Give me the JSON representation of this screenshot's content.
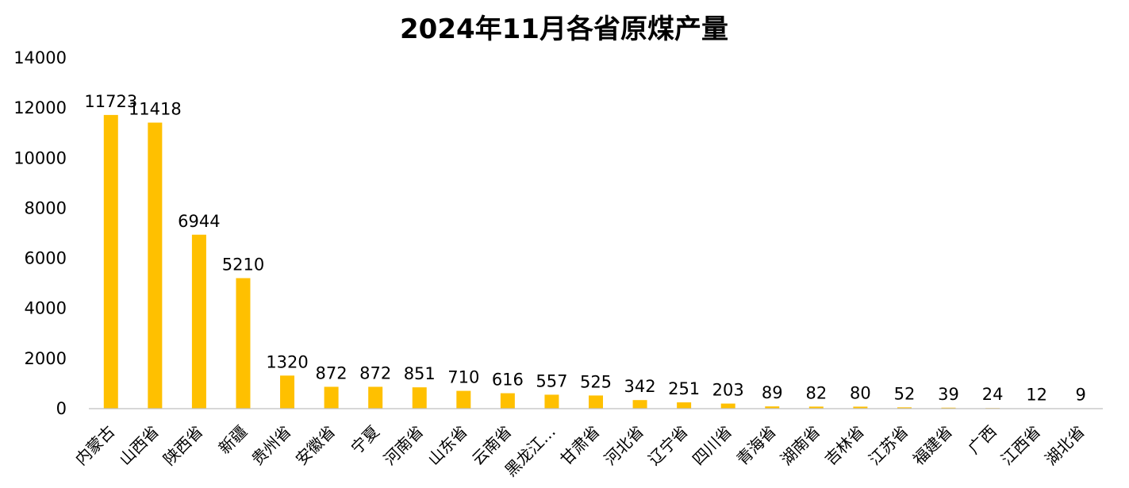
{
  "chart_data": {
    "type": "bar",
    "title": "2024年11月各省原煤产量",
    "xlabel": "",
    "ylabel": "",
    "ylim": [
      0,
      14000
    ],
    "yticks": [
      0,
      2000,
      4000,
      6000,
      8000,
      10000,
      12000,
      14000
    ],
    "grid": false,
    "legend": "none",
    "bar_color": "#FFC000",
    "categories": [
      "内蒙古",
      "山西省",
      "陕西省",
      "新疆",
      "贵州省",
      "安徽省",
      "宁夏",
      "河南省",
      "山东省",
      "云南省",
      "黑龙江…",
      "甘肃省",
      "河北省",
      "辽宁省",
      "四川省",
      "青海省",
      "湖南省",
      "吉林省",
      "江苏省",
      "福建省",
      "广西",
      "江西省",
      "湖北省"
    ],
    "values": [
      11723,
      11418,
      6944,
      5210,
      1320,
      872,
      872,
      851,
      710,
      616,
      557,
      525,
      342,
      251,
      203,
      89,
      82,
      80,
      52,
      39,
      24,
      12,
      9
    ]
  }
}
